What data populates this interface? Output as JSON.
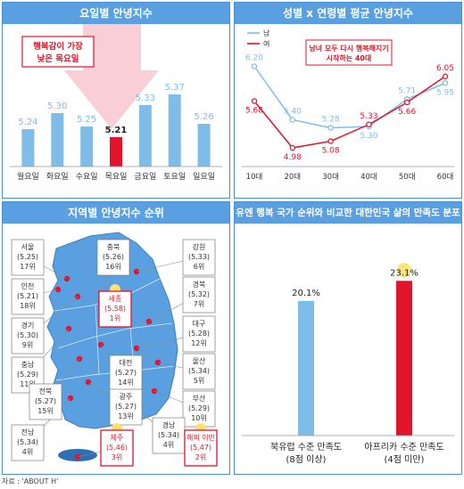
{
  "panels": {
    "weekday": {
      "title": "요일별 안녕지수"
    },
    "gender_age": {
      "title": "성별 x 연령별 평균 안녕지수"
    },
    "region": {
      "title": "지역별 안녕지수 순위"
    },
    "un": {
      "title": "유엔 행복 국가 순위와 비교한 대한민국 삶의 만족도 분포"
    }
  },
  "source": "자료 : 'ABOUT H'",
  "colors": {
    "header": "#5aa0e0",
    "blue": "#80bce8",
    "red": "#e0142a",
    "pink_arrow": "#f8c6d0"
  },
  "chart_data": [
    {
      "type": "bar",
      "categories": [
        "월요일",
        "화요일",
        "수요일",
        "목요일",
        "금요일",
        "토요일",
        "일요일"
      ],
      "values": [
        5.24,
        5.3,
        5.25,
        5.21,
        5.33,
        5.37,
        5.26
      ],
      "labels": [
        "5.24",
        "5.30",
        "5.25",
        "5.21",
        "5.33",
        "5.37",
        "5.26"
      ],
      "highlight_index": 3,
      "annotation": [
        "행복감이 가장",
        "낮은 목요일"
      ],
      "ylim": [
        5.1,
        5.4
      ]
    },
    {
      "type": "line",
      "categories": [
        "10대",
        "20대",
        "30대",
        "40대",
        "50대",
        "60대"
      ],
      "series": [
        {
          "name": "남",
          "values": [
            6.2,
            5.4,
            5.28,
            5.3,
            5.71,
            5.95
          ],
          "labels": [
            "6.20",
            "5.40",
            "5.28",
            "5.30",
            "5.71",
            "5.95"
          ]
        },
        {
          "name": "여",
          "values": [
            5.68,
            4.98,
            5.08,
            5.33,
            5.66,
            6.05
          ],
          "labels": [
            "5.68",
            "4.98",
            "5.08",
            "5.33",
            "5.66",
            "6.05"
          ]
        }
      ],
      "annotation": [
        "남녀 모두 다시 행복해지기",
        "시작하는 40대"
      ],
      "ylim": [
        4.7,
        6.3
      ]
    },
    {
      "type": "table",
      "regions": [
        {
          "name": "서울",
          "score": "(5.25)",
          "rank": "17위"
        },
        {
          "name": "인천",
          "score": "(5.21)",
          "rank": "18위"
        },
        {
          "name": "경기",
          "score": "(5.30)",
          "rank": "9위"
        },
        {
          "name": "충남",
          "score": "(5.29)",
          "rank": "11위"
        },
        {
          "name": "전북",
          "score": "(5.27)",
          "rank": "15위"
        },
        {
          "name": "전남",
          "score": "(5.34)",
          "rank": "4위"
        },
        {
          "name": "충북",
          "score": "(5.26)",
          "rank": "16위"
        },
        {
          "name": "세종",
          "score": "(5.58)",
          "rank": "1위"
        },
        {
          "name": "대전",
          "score": "(5.27)",
          "rank": "14위"
        },
        {
          "name": "광주",
          "score": "(5.27)",
          "rank": "13위"
        },
        {
          "name": "제주",
          "score": "(5.46)",
          "rank": "3위"
        },
        {
          "name": "강원",
          "score": "(5.33)",
          "rank": "6위"
        },
        {
          "name": "경북",
          "score": "(5.32)",
          "rank": "7위"
        },
        {
          "name": "대구",
          "score": "(5.28)",
          "rank": "12위"
        },
        {
          "name": "울산",
          "score": "(5.34)",
          "rank": "5위"
        },
        {
          "name": "부산",
          "score": "(5.29)",
          "rank": "10위"
        },
        {
          "name": "경남",
          "score": "(5.34)",
          "rank": "4위"
        },
        {
          "name": "해외 이민",
          "score": "(5.47)",
          "rank": "2위"
        }
      ]
    },
    {
      "type": "bar",
      "categories": [
        [
          "북유럽 수준 만족도",
          "(8점 이상)"
        ],
        [
          "아프리카 수준 만족도",
          "(4점 미만)"
        ]
      ],
      "values": [
        20.1,
        23.1
      ],
      "labels": [
        "20.1%",
        "23.1%"
      ],
      "ylim": [
        0,
        25
      ]
    }
  ]
}
